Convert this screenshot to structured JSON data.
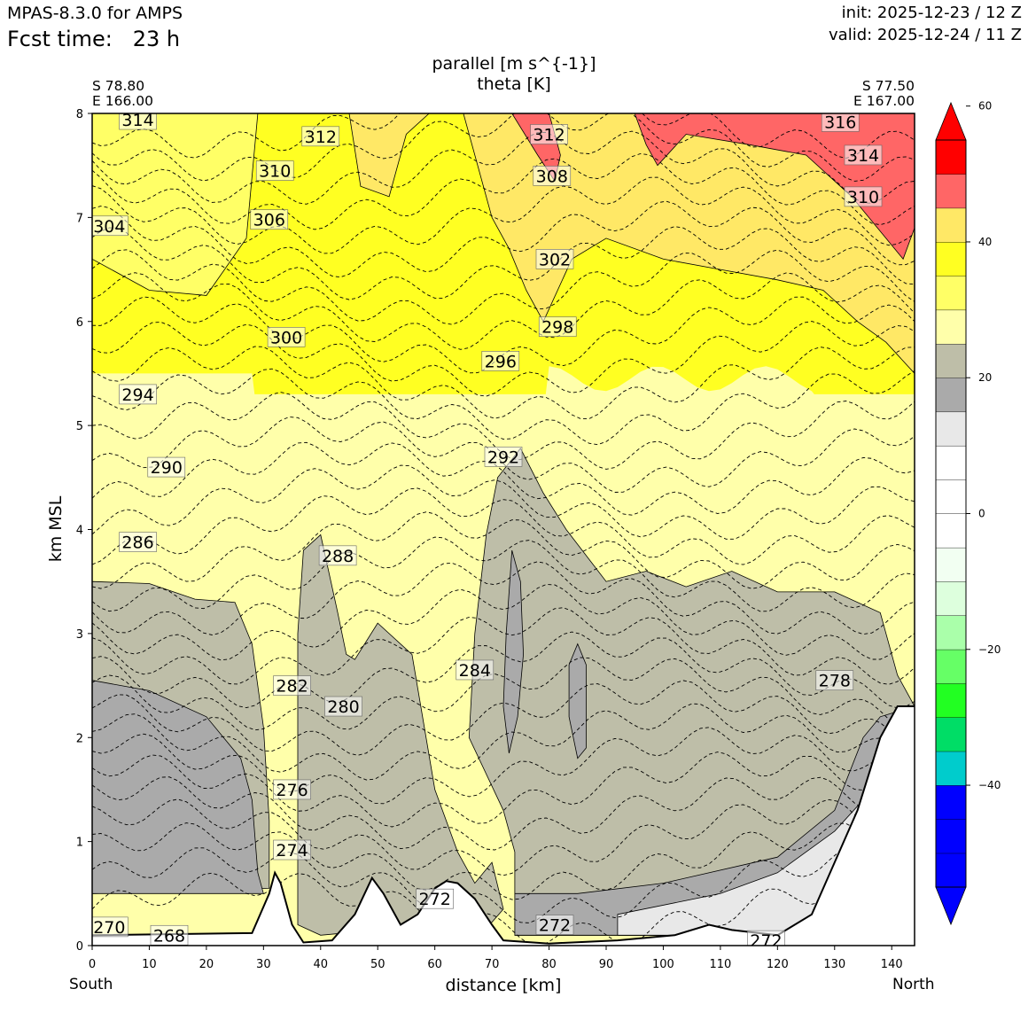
{
  "header": {
    "model": "MPAS-8.3.0 for AMPS",
    "fcst_label": "Fcst time:",
    "fcst_value": "23 h",
    "init": "init: 2025-12-23 / 12 Z",
    "valid": "valid: 2025-12-24 / 11 Z"
  },
  "title": {
    "line1": "parallel [m s^{-1}]",
    "line2": "theta [K]"
  },
  "endpoints": {
    "left_lat": "S 78.80",
    "left_lon": "E 166.00",
    "right_lat": "S 77.50",
    "right_lon": "E 167.00",
    "south": "South",
    "north": "North"
  },
  "chart_data": {
    "type": "cross-section (filled contour + contour lines)",
    "xlabel": "distance [km]",
    "ylabel": "km MSL",
    "xlim": [
      0,
      144
    ],
    "ylim": [
      0,
      8
    ],
    "x_ticks": [
      0,
      10,
      20,
      30,
      40,
      50,
      60,
      70,
      80,
      90,
      100,
      110,
      120,
      130,
      140
    ],
    "y_ticks": [
      0,
      1,
      2,
      3,
      4,
      5,
      6,
      7,
      8
    ],
    "colorbar": {
      "ticks": [
        60,
        40,
        20,
        0,
        -20,
        -40
      ],
      "tick_labels": [
        "60",
        "40",
        "20",
        "0",
        "−20",
        "−40"
      ],
      "levels": [
        -55,
        -50,
        -45,
        -40,
        -35,
        -30,
        -25,
        -20,
        -15,
        -10,
        -5,
        0,
        5,
        10,
        15,
        20,
        25,
        30,
        35,
        40,
        45,
        50,
        55
      ],
      "colors": [
        "#0000ff",
        "#0000ff",
        "#0000ff",
        "#00cccc",
        "#00dd66",
        "#22ff22",
        "#66ff66",
        "#aaffaa",
        "#ddffdd",
        "#f2fff2",
        "#ffffff",
        "#ffffff",
        "#ffffff",
        "#e8e8e8",
        "#aaaaaa",
        "#bebea8",
        "#ffffaa",
        "#ffff66",
        "#ffff22",
        "#ffe866",
        "#ff6666",
        "#ff0000"
      ]
    },
    "regions": [
      {
        "value": 22,
        "color": "#bebea8",
        "points": [
          [
            0,
            3.5
          ],
          [
            10,
            3.48
          ],
          [
            18,
            3.33
          ],
          [
            25,
            3.3
          ],
          [
            28,
            2.9
          ],
          [
            30,
            2.1
          ],
          [
            31,
            1.2
          ],
          [
            31,
            0.55
          ],
          [
            0,
            0.5
          ]
        ]
      },
      {
        "value": 17,
        "color": "#aaaaaa",
        "points": [
          [
            0,
            2.55
          ],
          [
            10,
            2.45
          ],
          [
            20,
            2.2
          ],
          [
            26,
            1.8
          ],
          [
            28,
            1.4
          ],
          [
            29,
            0.7
          ],
          [
            30,
            0.5
          ],
          [
            0,
            0.5
          ]
        ]
      },
      {
        "value": 22,
        "color": "#bebea8",
        "points": [
          [
            36,
            3.0
          ],
          [
            37,
            3.8
          ],
          [
            40,
            3.95
          ],
          [
            43,
            3.2
          ],
          [
            44.5,
            2.8
          ],
          [
            46,
            2.75
          ],
          [
            50,
            3.1
          ],
          [
            56,
            2.8
          ],
          [
            60,
            1.5
          ],
          [
            64,
            0.9
          ],
          [
            67,
            0.6
          ],
          [
            70,
            0.8
          ],
          [
            72,
            0.35
          ],
          [
            68,
            0.1
          ],
          [
            60,
            0.2
          ],
          [
            40,
            0.1
          ],
          [
            36,
            0.2
          ]
        ]
      },
      {
        "value": 22,
        "color": "#bebea8",
        "points": [
          [
            66,
            2.0
          ],
          [
            67,
            3.0
          ],
          [
            69,
            3.95
          ],
          [
            71,
            4.5
          ],
          [
            75,
            4.78
          ],
          [
            79,
            4.35
          ],
          [
            83,
            4.0
          ],
          [
            90,
            3.5
          ],
          [
            97,
            3.6
          ],
          [
            104,
            3.45
          ],
          [
            112,
            3.6
          ],
          [
            120,
            3.4
          ],
          [
            130,
            3.4
          ],
          [
            138,
            3.2
          ],
          [
            141,
            2.6
          ],
          [
            144,
            2.3
          ],
          [
            144,
            0.1
          ],
          [
            74,
            0.1
          ],
          [
            74,
            0.9
          ],
          [
            72,
            1.3
          ]
        ]
      },
      {
        "value": 17,
        "color": "#aaaaaa",
        "points": [
          [
            72.5,
            3.0
          ],
          [
            73.5,
            3.8
          ],
          [
            75,
            3.5
          ],
          [
            75.5,
            2.8
          ],
          [
            74.5,
            2.2
          ],
          [
            73,
            1.85
          ],
          [
            72,
            2.3
          ]
        ]
      },
      {
        "value": 17,
        "color": "#aaaaaa",
        "points": [
          [
            83.5,
            2.7
          ],
          [
            85,
            2.9
          ],
          [
            86.5,
            2.7
          ],
          [
            86.5,
            1.9
          ],
          [
            85,
            1.8
          ],
          [
            83.5,
            2.2
          ]
        ]
      },
      {
        "value": 17,
        "color": "#aaaaaa",
        "points": [
          [
            74,
            0.5
          ],
          [
            85,
            0.5
          ],
          [
            100,
            0.6
          ],
          [
            120,
            0.85
          ],
          [
            130,
            1.3
          ],
          [
            135,
            2.0
          ],
          [
            138,
            2.2
          ],
          [
            144,
            2.3
          ],
          [
            144,
            0.1
          ],
          [
            74,
            0.1
          ]
        ]
      },
      {
        "value": 12,
        "color": "#e8e8e8",
        "points": [
          [
            92,
            0.3
          ],
          [
            110,
            0.5
          ],
          [
            120,
            0.7
          ],
          [
            130,
            1.1
          ],
          [
            135,
            1.4
          ],
          [
            144,
            2.2
          ],
          [
            144,
            0.1
          ],
          [
            92,
            0.1
          ]
        ]
      },
      {
        "value": 30,
        "color": "#ffff66",
        "points": [
          [
            0,
            6.6
          ],
          [
            10,
            6.3
          ],
          [
            20,
            6.25
          ],
          [
            27,
            6.8
          ],
          [
            29,
            8.0
          ],
          [
            0,
            8.0
          ]
        ]
      },
      {
        "value": 40,
        "color": "#ffe866",
        "points": [
          [
            45,
            8.0
          ],
          [
            47,
            7.3
          ],
          [
            52,
            7.2
          ],
          [
            55,
            7.8
          ],
          [
            59,
            8.0
          ]
        ]
      },
      {
        "value": 40,
        "color": "#ffe866",
        "points": [
          [
            65,
            8.0
          ],
          [
            70,
            7.0
          ],
          [
            73,
            6.7
          ],
          [
            76,
            6.3
          ],
          [
            79,
            6.0
          ],
          [
            84,
            6.6
          ],
          [
            90,
            6.8
          ],
          [
            100,
            6.6
          ],
          [
            110,
            6.5
          ],
          [
            120,
            6.4
          ],
          [
            128,
            6.3
          ],
          [
            134,
            6.0
          ],
          [
            139,
            5.8
          ],
          [
            144,
            5.5
          ],
          [
            144,
            8.0
          ]
        ]
      },
      {
        "value": 50,
        "color": "#ff6666",
        "points": [
          [
            73.5,
            8.0
          ],
          [
            80,
            8.0
          ],
          [
            82,
            7.6
          ],
          [
            81,
            7.35
          ],
          [
            78,
            7.6
          ]
        ]
      },
      {
        "value": 50,
        "color": "#ff6666",
        "points": [
          [
            93,
            8.0
          ],
          [
            144,
            8.0
          ],
          [
            144,
            6.9
          ],
          [
            142,
            6.6
          ],
          [
            139,
            6.8
          ],
          [
            133,
            7.2
          ],
          [
            125,
            7.6
          ],
          [
            115,
            7.7
          ],
          [
            104,
            7.8
          ],
          [
            99,
            7.5
          ],
          [
            97,
            7.7
          ],
          [
            95,
            8.0
          ]
        ]
      }
    ],
    "theta_contours": [
      {
        "value": 314,
        "label_x": 8,
        "label_y": 7.94
      },
      {
        "value": 312,
        "label_x": 40,
        "label_y": 7.78
      },
      {
        "value": 310,
        "label_x": 32,
        "label_y": 7.45
      },
      {
        "value": 306,
        "label_x": 31,
        "label_y": 6.98
      },
      {
        "value": 304,
        "label_x": 3,
        "label_y": 6.92
      },
      {
        "value": 300,
        "label_x": 34,
        "label_y": 5.85
      },
      {
        "value": 296,
        "label_x": 71.5,
        "label_y": 5.62
      },
      {
        "value": 294,
        "label_x": 8,
        "label_y": 5.3
      },
      {
        "value": 292,
        "label_x": 72,
        "label_y": 4.7
      },
      {
        "value": 290,
        "label_x": 13,
        "label_y": 4.6
      },
      {
        "value": 288,
        "label_x": 43,
        "label_y": 3.75
      },
      {
        "value": 286,
        "label_x": 8,
        "label_y": 3.88
      },
      {
        "value": 284,
        "label_x": 67,
        "label_y": 2.65
      },
      {
        "value": 282,
        "label_x": 35,
        "label_y": 2.5
      },
      {
        "value": 280,
        "label_x": 44,
        "label_y": 2.3
      },
      {
        "value": 278,
        "label_x": 130,
        "label_y": 2.55
      },
      {
        "value": 276,
        "label_x": 35,
        "label_y": 1.5
      },
      {
        "value": 274,
        "label_x": 35,
        "label_y": 0.92
      },
      {
        "value": 272,
        "label_x": 60,
        "label_y": 0.45
      },
      {
        "value": 272,
        "label_x": 81,
        "label_y": 0.2
      },
      {
        "value": 272,
        "label_x": 118,
        "label_y": 0.05
      },
      {
        "value": 270,
        "label_x": 3,
        "label_y": 0.18
      },
      {
        "value": 268,
        "label_x": 13.5,
        "label_y": 0.1
      },
      {
        "value": 316,
        "label_x": 131,
        "label_y": 7.92
      },
      {
        "value": 314,
        "label_x": 135,
        "label_y": 7.6
      },
      {
        "value": 312,
        "label_x": 80,
        "label_y": 7.8
      },
      {
        "value": 310,
        "label_x": 135,
        "label_y": 7.2
      },
      {
        "value": 308,
        "label_x": 80.5,
        "label_y": 7.4
      },
      {
        "value": 302,
        "label_x": 81,
        "label_y": 6.6
      },
      {
        "value": 298,
        "label_x": 81.5,
        "label_y": 5.95
      }
    ],
    "terrain": [
      [
        0,
        0.1
      ],
      [
        28,
        0.12
      ],
      [
        31,
        0.5
      ],
      [
        32,
        0.7
      ],
      [
        33,
        0.6
      ],
      [
        35,
        0.2
      ],
      [
        37,
        0.03
      ],
      [
        42,
        0.05
      ],
      [
        46,
        0.3
      ],
      [
        49,
        0.65
      ],
      [
        51,
        0.5
      ],
      [
        54,
        0.2
      ],
      [
        57,
        0.3
      ],
      [
        60,
        0.55
      ],
      [
        62,
        0.62
      ],
      [
        64,
        0.6
      ],
      [
        67,
        0.45
      ],
      [
        70,
        0.2
      ],
      [
        72,
        0.05
      ],
      [
        80,
        0.02
      ],
      [
        92,
        0.05
      ],
      [
        102,
        0.1
      ],
      [
        108,
        0.2
      ],
      [
        112,
        0.15
      ],
      [
        120,
        0.1
      ],
      [
        126,
        0.3
      ],
      [
        130,
        0.8
      ],
      [
        134,
        1.3
      ],
      [
        138,
        2.0
      ],
      [
        141,
        2.3
      ],
      [
        144,
        2.3
      ]
    ]
  }
}
